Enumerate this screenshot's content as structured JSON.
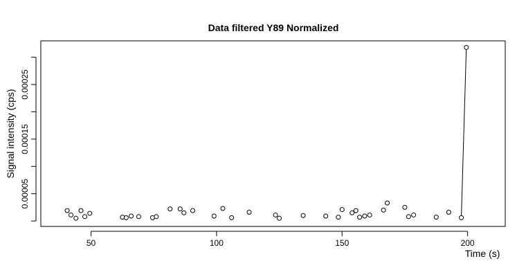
{
  "chart_data": {
    "type": "scatter",
    "title": "Data filtered Y89 Normalized",
    "xlabel": "Time (s)",
    "ylabel": "Signal intensity (cps)",
    "xlim": [
      30,
      215
    ],
    "ylim": [
      -1e-05,
      0.00033
    ],
    "xticks": [
      50,
      100,
      150,
      200
    ],
    "xtick_labels": [
      "50",
      "100",
      "150",
      "200"
    ],
    "yticks": [
      0.0,
      5e-05,
      0.0001,
      0.00015,
      0.0002,
      0.00025,
      0.0003
    ],
    "ytick_labels": [
      "",
      "0.00005",
      "",
      "0.00015",
      "",
      "0.00025",
      ""
    ],
    "grid": false,
    "legend": "none",
    "points": [
      {
        "x": 40.5,
        "y": 1.9e-05
      },
      {
        "x": 42.0,
        "y": 1.1e-05
      },
      {
        "x": 44.0,
        "y": 5e-06
      },
      {
        "x": 46.0,
        "y": 1.9e-05
      },
      {
        "x": 47.5,
        "y": 8e-06
      },
      {
        "x": 49.5,
        "y": 1.4e-05
      },
      {
        "x": 62.5,
        "y": 7e-06
      },
      {
        "x": 64.0,
        "y": 6e-06
      },
      {
        "x": 66.0,
        "y": 9e-06
      },
      {
        "x": 69.0,
        "y": 8e-06
      },
      {
        "x": 74.5,
        "y": 6e-06
      },
      {
        "x": 76.0,
        "y": 8e-06
      },
      {
        "x": 81.5,
        "y": 2.2e-05
      },
      {
        "x": 85.5,
        "y": 2.2e-05
      },
      {
        "x": 87.0,
        "y": 1.5e-05
      },
      {
        "x": 90.5,
        "y": 1.9e-05
      },
      {
        "x": 99.0,
        "y": 9e-06
      },
      {
        "x": 102.5,
        "y": 2.3e-05
      },
      {
        "x": 106.0,
        "y": 6e-06
      },
      {
        "x": 113.0,
        "y": 1.6e-05
      },
      {
        "x": 123.5,
        "y": 1.1e-05
      },
      {
        "x": 125.0,
        "y": 5e-06
      },
      {
        "x": 134.5,
        "y": 1e-05
      },
      {
        "x": 143.5,
        "y": 9e-06
      },
      {
        "x": 148.5,
        "y": 7e-06
      },
      {
        "x": 150.0,
        "y": 2.1e-05
      },
      {
        "x": 154.0,
        "y": 1.5e-05
      },
      {
        "x": 155.5,
        "y": 1.9e-05
      },
      {
        "x": 157.0,
        "y": 7e-06
      },
      {
        "x": 159.0,
        "y": 9e-06
      },
      {
        "x": 161.0,
        "y": 1.1e-05
      },
      {
        "x": 166.5,
        "y": 2e-05
      },
      {
        "x": 168.0,
        "y": 3.3e-05
      },
      {
        "x": 175.0,
        "y": 2.5e-05
      },
      {
        "x": 176.5,
        "y": 8e-06
      },
      {
        "x": 178.5,
        "y": 1.1e-05
      },
      {
        "x": 187.5,
        "y": 7e-06
      },
      {
        "x": 192.5,
        "y": 1.6e-05
      },
      {
        "x": 197.5,
        "y": 6e-06
      },
      {
        "x": 199.5,
        "y": 0.000318
      }
    ],
    "line_segment": [
      {
        "x": 197.5,
        "y": 6e-06
      },
      {
        "x": 199.5,
        "y": 0.000318
      }
    ]
  }
}
